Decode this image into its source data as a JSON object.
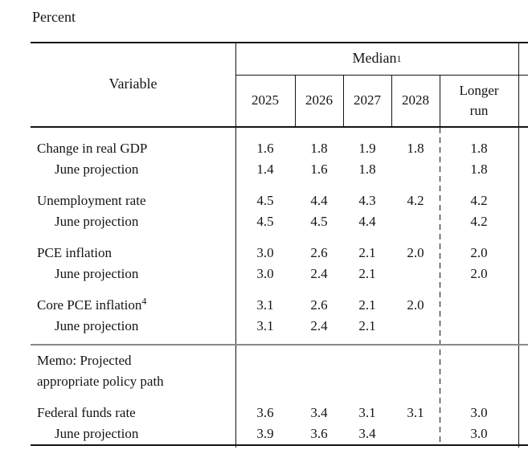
{
  "unit_label": "Percent",
  "colors": {
    "text": "#141414",
    "rule_line": "#141414",
    "memo_separator": "#8a8a8a",
    "background": "#ffffff"
  },
  "table": {
    "variable_header": "Variable",
    "group_header": {
      "text": "Median",
      "sup": "1"
    },
    "year_columns": [
      "2025",
      "2026",
      "2027",
      "2028"
    ],
    "longer_run_header": "Longer run",
    "rows": [
      {
        "label": "Change in real GDP",
        "values": [
          "1.6",
          "1.8",
          "1.9",
          "1.8"
        ],
        "longer_run": "1.8"
      },
      {
        "label": "June projection",
        "values": [
          "1.4",
          "1.6",
          "1.8",
          ""
        ],
        "longer_run": "1.8"
      },
      {
        "label": "Unemployment rate",
        "values": [
          "4.5",
          "4.4",
          "4.3",
          "4.2"
        ],
        "longer_run": "4.2"
      },
      {
        "label": "June projection",
        "values": [
          "4.5",
          "4.5",
          "4.4",
          ""
        ],
        "longer_run": "4.2"
      },
      {
        "label": "PCE inflation",
        "values": [
          "3.0",
          "2.6",
          "2.1",
          "2.0"
        ],
        "longer_run": "2.0"
      },
      {
        "label": "June projection",
        "values": [
          "3.0",
          "2.4",
          "2.1",
          ""
        ],
        "longer_run": "2.0"
      },
      {
        "label": "Core PCE inflation",
        "sup": "4",
        "values": [
          "3.1",
          "2.6",
          "2.1",
          "2.0"
        ],
        "longer_run": ""
      },
      {
        "label": "June projection",
        "values": [
          "3.1",
          "2.4",
          "2.1",
          ""
        ],
        "longer_run": ""
      },
      {
        "label": "Federal funds rate",
        "values": [
          "3.6",
          "3.4",
          "3.1",
          "3.1"
        ],
        "longer_run": "3.0"
      },
      {
        "label": "June projection",
        "values": [
          "3.9",
          "3.6",
          "3.4",
          ""
        ],
        "longer_run": "3.0"
      }
    ],
    "memo": {
      "line1": "Memo: Projected",
      "line2": "appropriate policy path"
    }
  }
}
